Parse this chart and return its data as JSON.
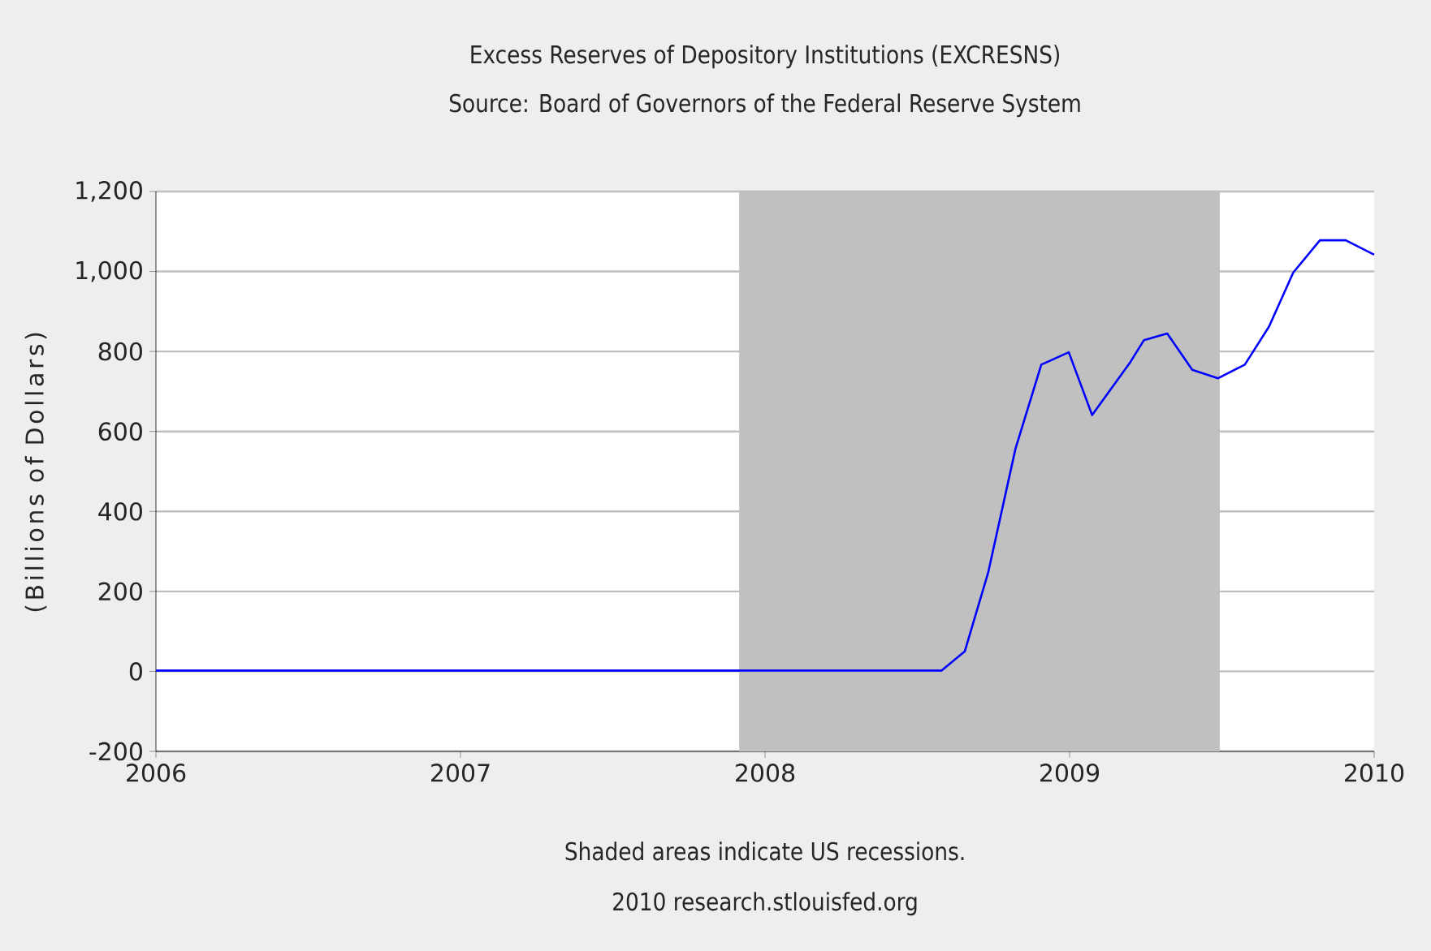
{
  "chart_data": {
    "type": "line",
    "title": "Excess Reserves of Depository Institutions (EXCRESNS)",
    "subtitle": "Source: Board of Governors of the Federal Reserve System",
    "ylabel": "(Billions of Dollars)",
    "annotations": [
      "Shaded areas indicate US recessions.",
      "2010 research.stlouisfed.org"
    ],
    "x": [
      "2006-01-01",
      "2008-07-31",
      "2008-08-28",
      "2008-09-25",
      "2008-10-28",
      "2008-11-28",
      "2008-12-31",
      "2009-01-28",
      "2009-03-15",
      "2009-03-31",
      "2009-04-28",
      "2009-05-28",
      "2009-06-28",
      "2009-07-30",
      "2009-08-28",
      "2009-09-26",
      "2009-10-28",
      "2009-11-28",
      "2010-01-01"
    ],
    "series": [
      {
        "color": "#0000ff",
        "values": [
          2,
          2,
          50,
          246,
          557,
          767,
          798,
          641,
          774,
          828,
          845,
          754,
          733,
          767,
          862,
          997,
          1078,
          1078,
          1042
        ]
      }
    ],
    "xlim": [
      "2006-01-01",
      "2010-01-01"
    ],
    "xticks": [
      "2006",
      "2007",
      "2008",
      "2009",
      "2010"
    ],
    "ylim": [
      -200,
      1200
    ],
    "yticks": [
      -200,
      0,
      200,
      400,
      600,
      800,
      {
        "value": 1000,
        "label": "1,000"
      },
      {
        "value": 1200,
        "label": "1,200"
      }
    ],
    "bands": [
      {
        "axis": "x",
        "from": "2007-12-01",
        "to": "2009-06-30",
        "color": "#c0c0c0"
      }
    ],
    "grid": "y",
    "line_style": "solid"
  }
}
